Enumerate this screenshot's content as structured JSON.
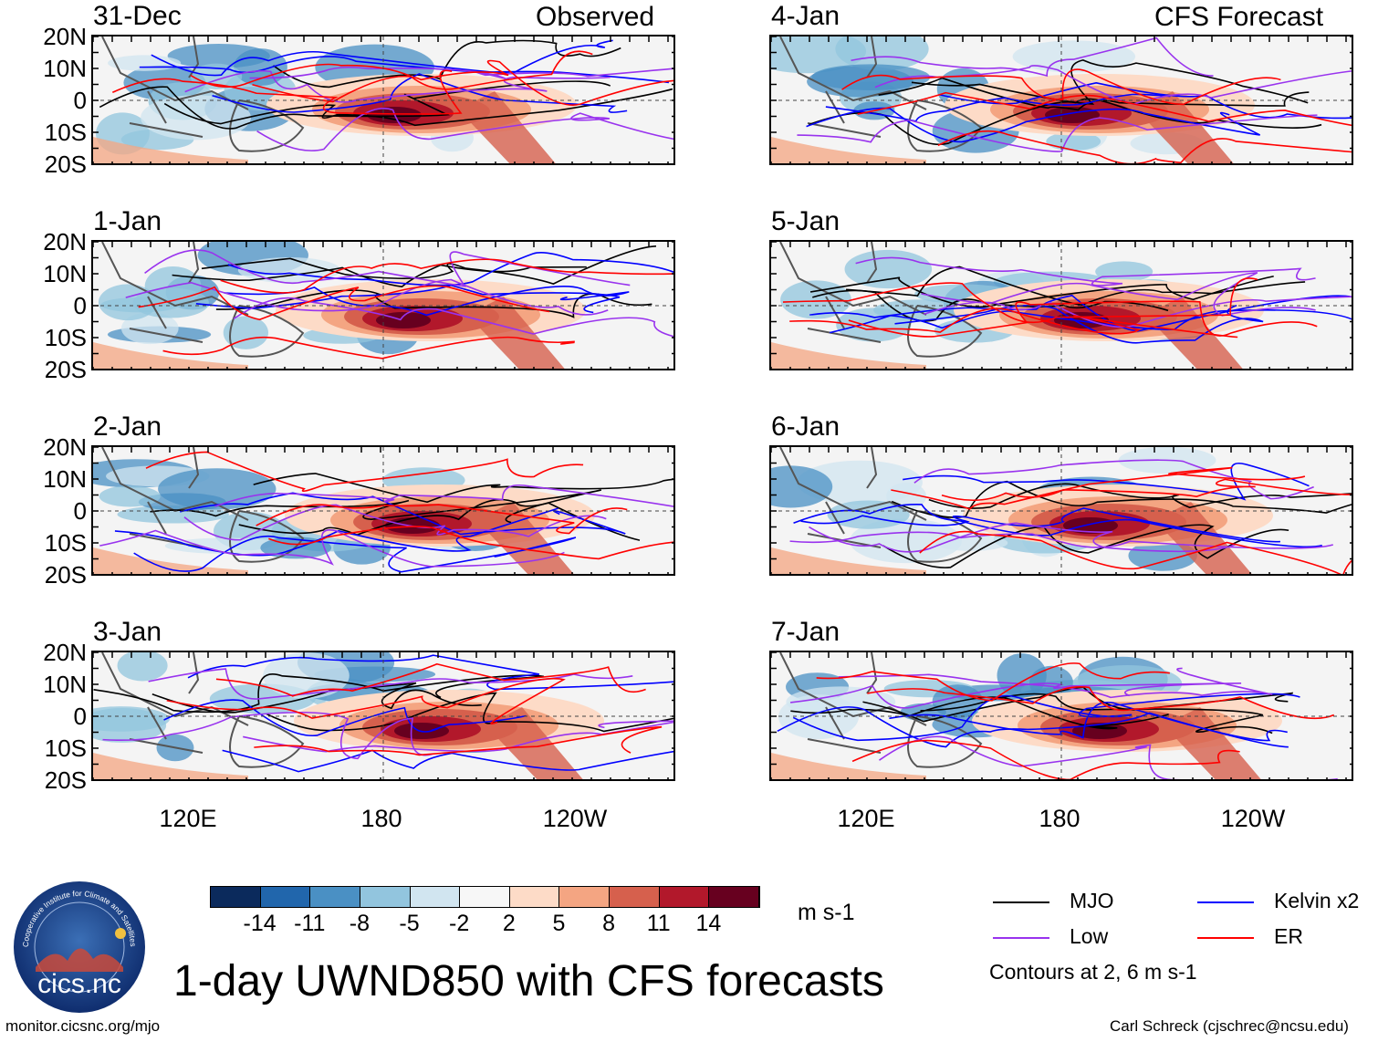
{
  "columns": {
    "left_label": "Observed",
    "right_label": "CFS Forecast"
  },
  "panels": [
    {
      "date": "31-Dec",
      "side": "left"
    },
    {
      "date": "1-Jan",
      "side": "left"
    },
    {
      "date": "2-Jan",
      "side": "left"
    },
    {
      "date": "3-Jan",
      "side": "left"
    },
    {
      "date": "4-Jan",
      "side": "right"
    },
    {
      "date": "5-Jan",
      "side": "right"
    },
    {
      "date": "6-Jan",
      "side": "right"
    },
    {
      "date": "7-Jan",
      "side": "right"
    }
  ],
  "map": {
    "lat_labels": [
      "20N",
      "10N",
      "0",
      "10S",
      "20S"
    ],
    "lon_labels": [
      "120E",
      "180",
      "120W"
    ]
  },
  "colorbar": {
    "colors": [
      "#0b2a5c",
      "#2166ac",
      "#4a90c4",
      "#92c5de",
      "#d1e5f0",
      "#f7f7f7",
      "#fddbc7",
      "#f4a582",
      "#d6604d",
      "#b2182b",
      "#67001f"
    ],
    "ticks": [
      "-14",
      "-11",
      "-8",
      "-5",
      "-2",
      "2",
      "5",
      "8",
      "11",
      "14"
    ],
    "units": "m s-1"
  },
  "legend": {
    "items": [
      {
        "label": "MJO",
        "color": "#000000"
      },
      {
        "label": "Kelvin x2",
        "color": "#0000ff"
      },
      {
        "label": "Low",
        "color": "#9933ee"
      },
      {
        "label": "ER",
        "color": "#ff0000"
      }
    ],
    "note": "Contours at 2, 6 m s-1"
  },
  "title": "1-day UWND850 with CFS forecasts",
  "logo": {
    "text": "cics.nc",
    "ring_text": "Cooperative Institute for Climate and Satellites"
  },
  "footer": {
    "left": "monitor.cicsnc.org/mjo",
    "right": "Carl Schreck (cjschrec@ncsu.edu)"
  }
}
